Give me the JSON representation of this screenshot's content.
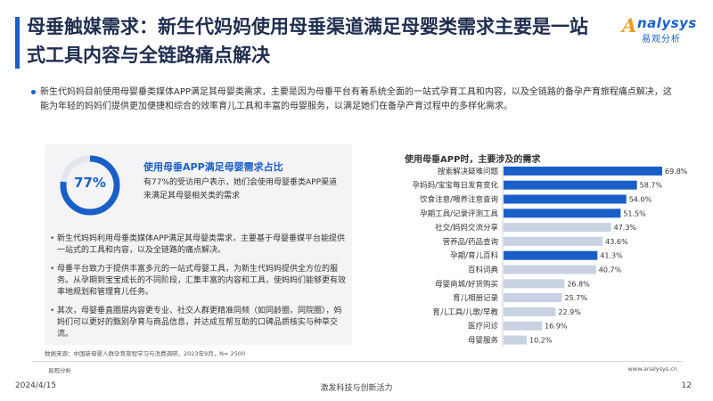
{
  "header": {
    "title": "母垂触媒需求：新生代妈妈使用母垂渠道满足母婴类需求主要是一站式工具内容与全链路痛点解决",
    "logo_text": "nalysys",
    "logo_mark": "A",
    "logo_sub": "易观分析"
  },
  "intro": "新生代妈妈目前使用母婴垂类媒体APP满足其母婴类需求，主要是因为母垂平台有着系统全面的一站式孕育工具和内容，以及全链路的备孕产育旅程痛点解决，这能为年轻的妈妈们提供更加便捷和综合的效率育儿工具和丰富的母婴服务，以满足她们在备孕产育过程中的多样化需求。",
  "card": {
    "percent_label": "77%",
    "percent_value": 77,
    "heading": "使用母垂APP满足母婴需求占比",
    "text": "有77%的受访用户表示，她们会使用母婴垂类APP渠道来满足其母婴相关类的需求"
  },
  "bullets": [
    "新生代妈妈利用母垂类媒体APP满足其母婴类需求，主要基于母婴垂媒平台能提供一站式的工具和内容，以及全链路的痛点解决。",
    "母垂平台致力于提供丰富多元的一站式母婴工具，为新生代妈妈提供全方位的服务。从孕期到宝宝成长的不同阶段，汇集丰富的内容和工具，使妈妈们能够更有效率地规划和管理育儿任务。",
    "其次，母婴垂直圈层内容更专业、社交人群更精准同频（如同龄圈，同院圈），妈妈们可以更好的甄别孕育与商品信息，并达成互帮互助的口碑品质核实与种草交流。"
  ],
  "source": "数据来源：中国新母婴人群孕育旅程学习与消费调研，2023年9月，N= 2500",
  "chart_data": {
    "type": "bar",
    "orientation": "horizontal",
    "title": "使用母垂APP时，主要涉及的需求",
    "categories": [
      "搜索解决疑难问题",
      "孕妈妈/宝宝每日发育变化",
      "饮食注意/喂养注意查询",
      "孕期工具/记录评测工具",
      "社交/妈妈交流分享",
      "营养品/药品查询",
      "孕期/育儿百科",
      "百科词典",
      "母婴商城/好货购买",
      "育儿相册记录",
      "育儿工具/儿歌/早教",
      "医疗问诊",
      "母婴服务"
    ],
    "values": [
      69.8,
      58.7,
      54.0,
      51.5,
      47.3,
      43.6,
      41.3,
      40.7,
      26.8,
      25.7,
      22.9,
      16.9,
      10.2
    ],
    "value_labels": [
      "69.8%",
      "58.7%",
      "54.0%",
      "51.5%",
      "47.3%",
      "43.6%",
      "41.3%",
      "40.7%",
      "26.8%",
      "25.7%",
      "22.9%",
      "16.9%",
      "10.2%"
    ],
    "highlighted": [
      true,
      true,
      true,
      true,
      false,
      false,
      true,
      false,
      false,
      false,
      false,
      false,
      false
    ],
    "xlim": [
      0,
      100
    ],
    "colors": {
      "highlight": "#1a5fc8",
      "normal": "#c9d2e2"
    }
  },
  "footer": {
    "logo": "易观分析",
    "url": "www.analysys.cn",
    "date": "2024/4/15",
    "slogan": "激发科技与创新活力",
    "page": "12"
  }
}
